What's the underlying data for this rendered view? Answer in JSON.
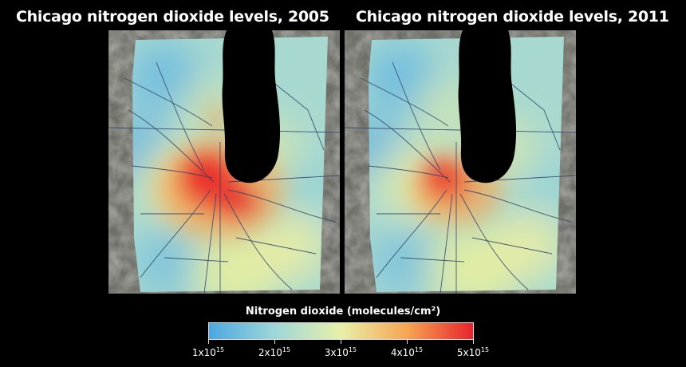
{
  "panels": [
    {
      "title": "Chicago nitrogen dioxide levels, 2005",
      "year": "2005",
      "hotspot_intensity": 1.0
    },
    {
      "title": "Chicago nitrogen dioxide levels, 2011",
      "year": "2011",
      "hotspot_intensity": 0.55
    }
  ],
  "legend": {
    "title": "Nitrogen dioxide (molecules/cm²)",
    "colors": [
      "#4aa7e0",
      "#9ed7d9",
      "#e8f0a8",
      "#f7a552",
      "#e8232b"
    ],
    "ticks": [
      {
        "base": "1x10",
        "exp": "15",
        "value": 1
      },
      {
        "base": "2x10",
        "exp": "15",
        "value": 2
      },
      {
        "base": "3x10",
        "exp": "15",
        "value": 3
      },
      {
        "base": "4x10",
        "exp": "15",
        "value": 4
      },
      {
        "base": "5x10",
        "exp": "15",
        "value": 5
      }
    ]
  },
  "colors": {
    "background": "#000000",
    "lake": "#000000",
    "terrain": "#6e6f68",
    "road": "#2c3f66"
  }
}
